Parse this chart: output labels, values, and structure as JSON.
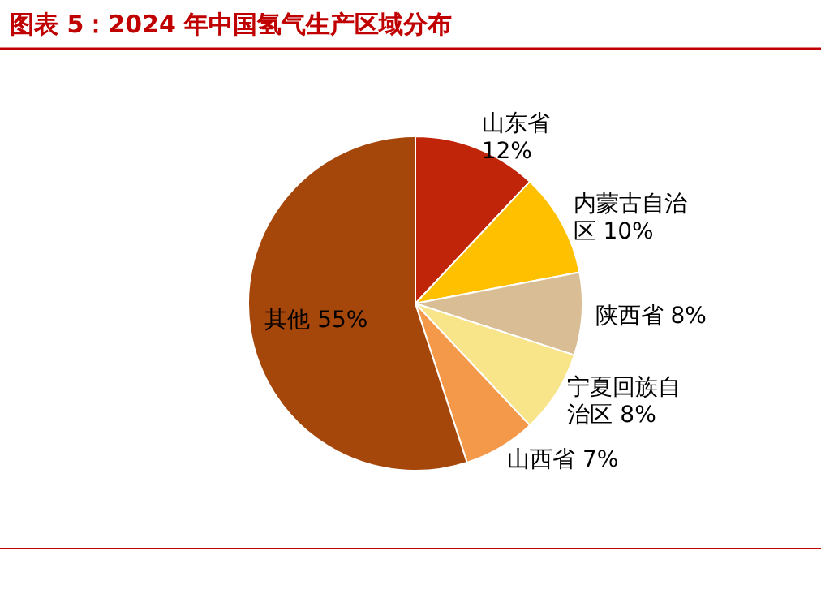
{
  "chart_data": {
    "type": "pie",
    "title": "图表 5：2024 年中国氢气生产区域分布",
    "categories": [
      "山东省",
      "内蒙古自治区",
      "陕西省",
      "宁夏回族自治区",
      "山西省",
      "其他"
    ],
    "values": [
      12,
      10,
      8,
      8,
      7,
      55
    ],
    "colors": [
      "#c0250a",
      "#ffc000",
      "#d9bd94",
      "#f8e58a",
      "#f4994a",
      "#a5460a"
    ],
    "value_labels": [
      "12%",
      "10%",
      "8%",
      "8%",
      "7%",
      "55%"
    ]
  }
}
